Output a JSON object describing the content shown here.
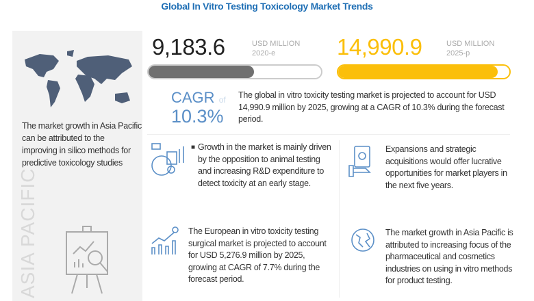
{
  "title": "Global In Vitro Testing Toxicology Market Trends",
  "left_panel": {
    "text": "The market growth in Asia Pacific can be attributed to the improving in silico methods for predictive toxicology studies",
    "region_label": "ASIA PACIFIC",
    "icons": [
      "world-map-icon",
      "presentation-board-icon"
    ]
  },
  "stats": [
    {
      "value": "9,183.6",
      "unit": "USD MILLION",
      "year": "2020-e",
      "bar_fill_percent": 61,
      "color": "#707070"
    },
    {
      "value": "14,990.9",
      "unit": "USD MILLION",
      "year": "2025-p",
      "bar_fill_percent": 93,
      "color": "#fbbf0a"
    }
  ],
  "cagr": {
    "label": "CAGR",
    "of": "of",
    "value": "10.3%",
    "color": "#5b8fc7",
    "description": "The global in vitro toxicity testing market is projected to account for USD 14,990.9 million  by 2025, growing at a CAGR of 10.3% during the forecast period."
  },
  "cards": [
    {
      "icon": "analytics-icon",
      "text": "Growth in the market is mainly driven by the opposition to animal testing and increasing R&D expenditure to detect toxicity at an early stage."
    },
    {
      "icon": "money-hand-icon",
      "text": "Expansions and strategic acquisitions would offer lucrative opportunities for market players in the next five years."
    },
    {
      "icon": "growth-chart-icon",
      "text": "The European in vitro toxicity testing surgical market is projected to account for USD 5,276.9 million by 2025, growing at CAGR of 7.7% during the forecast period."
    },
    {
      "icon": "globe-icon",
      "text": "The market growth in Asia Pacific is attributed to increasing focus of the pharmaceutical and cosmetics industries on using in vitro methods for product testing."
    }
  ]
}
